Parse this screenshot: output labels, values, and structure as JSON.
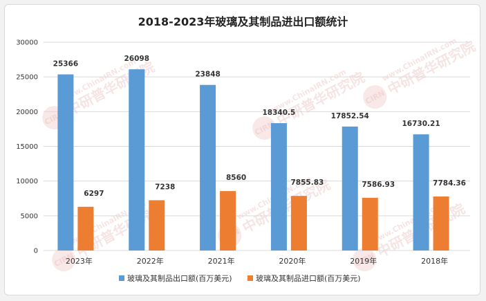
{
  "chart_data": {
    "type": "bar",
    "title": "2018-2023年玻璃及其制品进出口额统计",
    "categories": [
      "2023年",
      "2022年",
      "2021年",
      "2020年",
      "2019年",
      "2018年"
    ],
    "series": [
      {
        "name": "玻璃及其制品出口额(百万美元)",
        "color": "#5b9bd5",
        "values": [
          25366,
          26098,
          23848,
          18340.5,
          17852.54,
          16730.21
        ],
        "labels": [
          "25366",
          "26098",
          "23848",
          "18340.5",
          "17852.54",
          "16730.21"
        ]
      },
      {
        "name": "玻璃及其制品进口额(百万美元)",
        "color": "#ed7d31",
        "values": [
          6297,
          7238,
          8560,
          7855.83,
          7586.93,
          7784.36
        ],
        "labels": [
          "6297",
          "7238",
          "8560",
          "7855.83",
          "7586.93",
          "7784.36"
        ]
      }
    ],
    "ylim": [
      0,
      30000
    ],
    "yticks": [
      "0",
      "5000",
      "10000",
      "15000",
      "20000",
      "25000",
      "30000"
    ],
    "grid": true,
    "legend": "bottom",
    "watermark": {
      "text": "中研普华研究院",
      "url": "www.ChinaIRN.com",
      "badge": "CIRN"
    }
  }
}
